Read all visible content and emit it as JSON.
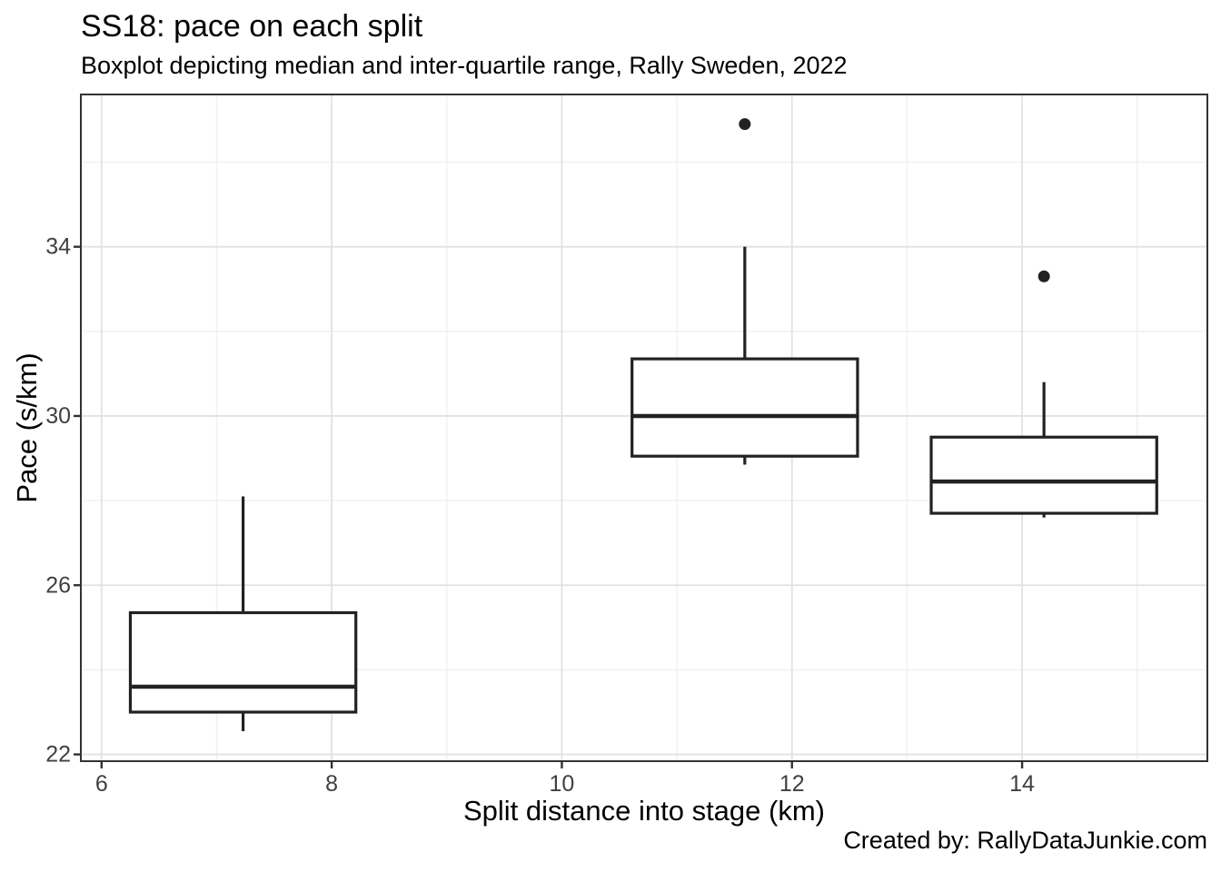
{
  "header": {
    "title": "SS18: pace on each split",
    "subtitle": "Boxplot depicting median and inter-quartile range, Rally Sweden, 2022"
  },
  "caption": "Created by: RallyDataJunkie.com",
  "chart_data": {
    "type": "boxplot",
    "title": "SS18: pace on each split",
    "subtitle": "Boxplot depicting median and inter-quartile range, Rally Sweden, 2022",
    "xlabel": "Split distance into stage (km)",
    "ylabel": "Pace (s/km)",
    "xlim": [
      5.82,
      15.61
    ],
    "ylim": [
      21.84,
      37.6
    ],
    "x_ticks": [
      6,
      8,
      10,
      12,
      14
    ],
    "x_minor_ticks": [
      7,
      9,
      11,
      13,
      15
    ],
    "y_ticks": [
      22,
      26,
      30,
      34
    ],
    "y_minor_ticks": [
      24,
      28,
      32,
      36
    ],
    "grid": true,
    "legend": false,
    "box_width": 1.96,
    "series": [
      {
        "name": "split-7.23km",
        "x": 7.23,
        "whisker_low": 22.55,
        "q1": 23.0,
        "median": 23.6,
        "q3": 25.35,
        "whisker_high": 28.1,
        "outliers": []
      },
      {
        "name": "split-11.59km",
        "x": 11.59,
        "whisker_low": 28.85,
        "q1": 29.05,
        "median": 30.0,
        "q3": 31.35,
        "whisker_high": 34.0,
        "outliers": [
          36.9
        ]
      },
      {
        "name": "split-14.19km",
        "x": 14.19,
        "whisker_low": 27.6,
        "q1": 27.7,
        "median": 28.45,
        "q3": 29.5,
        "whisker_high": 30.8,
        "outliers": [
          33.3
        ]
      }
    ],
    "colors": {
      "background": "#ffffff",
      "panel_fill": "#ffffff",
      "panel_border": "#333333",
      "grid_major": "#e2e2e2",
      "grid_minor": "#f0f0f0",
      "box_stroke": "#222222",
      "box_fill": "#ffffff",
      "outlier_fill": "#222222",
      "tick_mark": "#333333",
      "tick_label": "#404040",
      "text": "#000000"
    }
  }
}
